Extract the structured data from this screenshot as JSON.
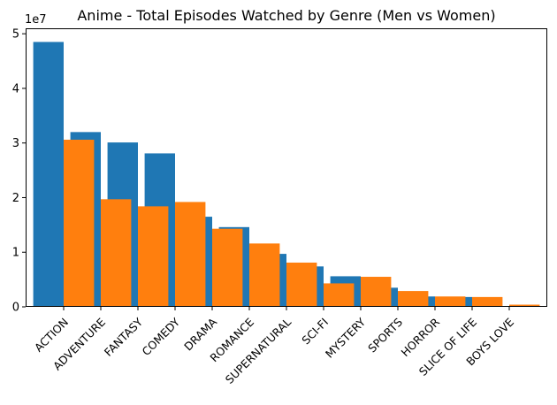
{
  "chart_data": {
    "type": "bar",
    "title": "Anime - Total Episodes Watched by Genre (Men vs Women)",
    "xlabel": "",
    "ylabel": "",
    "y_scale_label": "1e7",
    "ylim": [
      0,
      51000000
    ],
    "yticks": [
      0,
      1,
      2,
      3,
      4,
      5
    ],
    "y_multiplier": 10000000,
    "categories": [
      "ACTION",
      "ADVENTURE",
      "FANTASY",
      "COMEDY",
      "DRAMA",
      "ROMANCE",
      "SUPERNATURAL",
      "SCI-FI",
      "MYSTERY",
      "SPORTS",
      "HORROR",
      "SLICE OF LIFE",
      "BOYS LOVE"
    ],
    "series": [
      {
        "color": "#1f77b4",
        "values": [
          48500000,
          32000000,
          30100000,
          28100000,
          16500000,
          14600000,
          9700000,
          7400000,
          5600000,
          3500000,
          1900000,
          1800000,
          0
        ]
      },
      {
        "color": "#ff7f0e",
        "values": [
          30600000,
          19700000,
          18400000,
          19200000,
          14300000,
          11600000,
          8100000,
          4300000,
          5500000,
          2900000,
          1900000,
          1800000,
          400000
        ]
      }
    ],
    "legend": false,
    "grid": false
  }
}
